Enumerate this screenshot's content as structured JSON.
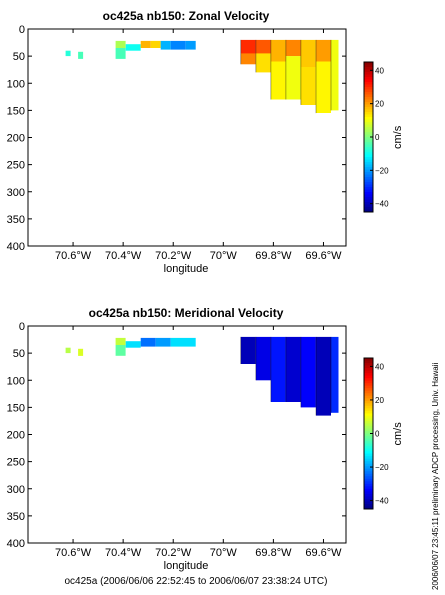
{
  "footer": "oc425a (2006/06/06 22:52:45 to 2006/06/07 23:38:24 UTC)",
  "side_note": "2006/06/07 23:45:11     preliminary ADCP processing,  Univ. Hawaii",
  "chart_data": [
    {
      "type": "heatmap",
      "title": "oc425a nb150: Zonal Velocity",
      "xlabel": "longitude",
      "ylabel": "",
      "xlim": [
        -70.78,
        -69.51
      ],
      "ylim": [
        400,
        0
      ],
      "x_ticks": [
        -70.6,
        -70.4,
        -70.2,
        -70.0,
        -69.8,
        -69.6
      ],
      "x_tick_labels": [
        "70.6°W",
        "70.4°W",
        "70.2°W",
        "70°W",
        "69.8°W",
        "69.6°W"
      ],
      "y_ticks": [
        0,
        50,
        100,
        150,
        200,
        250,
        300,
        350,
        400
      ],
      "y_tick_labels": [
        "0",
        "50",
        "100",
        "150",
        "200",
        "250",
        "300",
        "350",
        "400"
      ],
      "colorbar": {
        "label": "cm/s",
        "range": [
          -45,
          45
        ],
        "ticks": [
          40,
          20,
          0,
          -20,
          -40
        ],
        "tick_labels": [
          "40",
          "20",
          "0",
          "−20",
          "−40"
        ]
      },
      "patches": [
        {
          "x0": -70.63,
          "x1": -70.61,
          "d0": 40,
          "d1": 50,
          "value": -8
        },
        {
          "x0": -70.58,
          "x1": -70.56,
          "d0": 42,
          "d1": 55,
          "value": -5
        },
        {
          "x0": -70.43,
          "x1": -70.39,
          "d0": 22,
          "d1": 35,
          "value": 4
        },
        {
          "x0": -70.43,
          "x1": -70.39,
          "d0": 35,
          "d1": 55,
          "value": -5
        },
        {
          "x0": -70.39,
          "x1": -70.33,
          "d0": 28,
          "d1": 40,
          "value": -10
        },
        {
          "x0": -70.33,
          "x1": -70.29,
          "d0": 22,
          "d1": 35,
          "value": 18
        },
        {
          "x0": -70.29,
          "x1": -70.25,
          "d0": 22,
          "d1": 35,
          "value": 15
        },
        {
          "x0": -70.25,
          "x1": -70.21,
          "d0": 22,
          "d1": 38,
          "value": -18
        },
        {
          "x0": -70.21,
          "x1": -70.15,
          "d0": 22,
          "d1": 38,
          "value": -22
        },
        {
          "x0": -70.15,
          "x1": -70.11,
          "d0": 22,
          "d1": 38,
          "value": -20
        },
        {
          "x0": -69.93,
          "x1": -69.87,
          "d0": 20,
          "d1": 45,
          "value": 30
        },
        {
          "x0": -69.93,
          "x1": -69.87,
          "d0": 45,
          "d1": 65,
          "value": 22
        },
        {
          "x0": -69.87,
          "x1": -69.81,
          "d0": 20,
          "d1": 45,
          "value": 26
        },
        {
          "x0": -69.87,
          "x1": -69.81,
          "d0": 45,
          "d1": 80,
          "value": 14
        },
        {
          "x0": -69.81,
          "x1": -69.75,
          "d0": 20,
          "d1": 60,
          "value": 18
        },
        {
          "x0": -69.81,
          "x1": -69.75,
          "d0": 60,
          "d1": 130,
          "value": 12
        },
        {
          "x0": -69.75,
          "x1": -69.69,
          "d0": 20,
          "d1": 50,
          "value": 22
        },
        {
          "x0": -69.75,
          "x1": -69.69,
          "d0": 50,
          "d1": 130,
          "value": 10
        },
        {
          "x0": -69.69,
          "x1": -69.63,
          "d0": 20,
          "d1": 70,
          "value": 16
        },
        {
          "x0": -69.69,
          "x1": -69.63,
          "d0": 70,
          "d1": 140,
          "value": 14
        },
        {
          "x0": -69.63,
          "x1": -69.57,
          "d0": 20,
          "d1": 60,
          "value": 20
        },
        {
          "x0": -69.63,
          "x1": -69.57,
          "d0": 60,
          "d1": 155,
          "value": 12
        },
        {
          "x0": -69.57,
          "x1": -69.54,
          "d0": 20,
          "d1": 150,
          "value": 10
        }
      ]
    },
    {
      "type": "heatmap",
      "title": "oc425a nb150: Meridional Velocity",
      "xlabel": "longitude",
      "ylabel": "",
      "xlim": [
        -70.78,
        -69.51
      ],
      "ylim": [
        400,
        0
      ],
      "x_ticks": [
        -70.6,
        -70.4,
        -70.2,
        -70.0,
        -69.8,
        -69.6
      ],
      "x_tick_labels": [
        "70.6°W",
        "70.4°W",
        "70.2°W",
        "70°W",
        "69.8°W",
        "69.6°W"
      ],
      "y_ticks": [
        0,
        50,
        100,
        150,
        200,
        250,
        300,
        350,
        400
      ],
      "y_tick_labels": [
        "0",
        "50",
        "100",
        "150",
        "200",
        "250",
        "300",
        "350",
        "400"
      ],
      "colorbar": {
        "label": "cm/s",
        "range": [
          -45,
          45
        ],
        "ticks": [
          40,
          20,
          0,
          -20,
          -40
        ],
        "tick_labels": [
          "40",
          "20",
          "0",
          "−20",
          "−40"
        ]
      },
      "patches": [
        {
          "x0": -70.63,
          "x1": -70.61,
          "d0": 40,
          "d1": 50,
          "value": 5
        },
        {
          "x0": -70.58,
          "x1": -70.56,
          "d0": 42,
          "d1": 55,
          "value": 8
        },
        {
          "x0": -70.43,
          "x1": -70.39,
          "d0": 22,
          "d1": 35,
          "value": 6
        },
        {
          "x0": -70.43,
          "x1": -70.39,
          "d0": 35,
          "d1": 55,
          "value": -3
        },
        {
          "x0": -70.39,
          "x1": -70.33,
          "d0": 28,
          "d1": 40,
          "value": -14
        },
        {
          "x0": -70.33,
          "x1": -70.27,
          "d0": 22,
          "d1": 38,
          "value": -24
        },
        {
          "x0": -70.27,
          "x1": -70.21,
          "d0": 22,
          "d1": 38,
          "value": -20
        },
        {
          "x0": -70.21,
          "x1": -70.11,
          "d0": 22,
          "d1": 38,
          "value": -14
        },
        {
          "x0": -69.93,
          "x1": -69.87,
          "d0": 20,
          "d1": 70,
          "value": -40
        },
        {
          "x0": -69.87,
          "x1": -69.81,
          "d0": 20,
          "d1": 100,
          "value": -36
        },
        {
          "x0": -69.81,
          "x1": -69.75,
          "d0": 20,
          "d1": 140,
          "value": -32
        },
        {
          "x0": -69.75,
          "x1": -69.69,
          "d0": 20,
          "d1": 140,
          "value": -38
        },
        {
          "x0": -69.69,
          "x1": -69.63,
          "d0": 20,
          "d1": 150,
          "value": -34
        },
        {
          "x0": -69.63,
          "x1": -69.57,
          "d0": 20,
          "d1": 165,
          "value": -40
        },
        {
          "x0": -69.57,
          "x1": -69.54,
          "d0": 20,
          "d1": 160,
          "value": -30
        }
      ]
    }
  ]
}
